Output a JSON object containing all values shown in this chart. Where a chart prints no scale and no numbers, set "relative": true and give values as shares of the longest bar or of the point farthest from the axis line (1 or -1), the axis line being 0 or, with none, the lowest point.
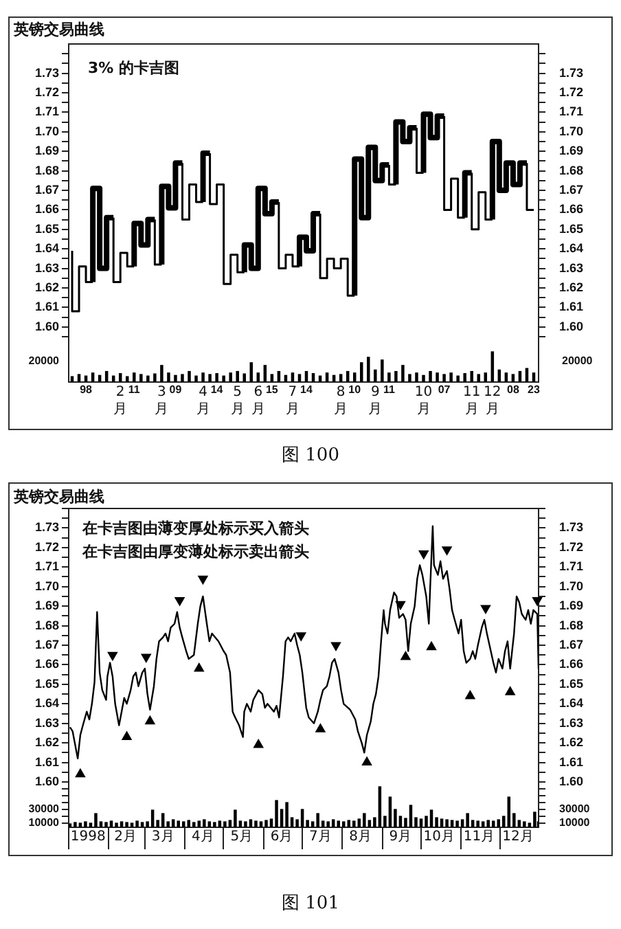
{
  "chart_data": [
    {
      "type": "step",
      "title": "英镑交易曲线",
      "annotations": [
        "3% 的卡吉图"
      ],
      "categories": [
        null,
        null,
        null,
        null,
        null,
        null,
        null,
        null,
        null,
        null,
        null,
        null,
        null,
        null,
        null,
        null,
        null,
        null,
        null,
        null,
        null,
        null,
        null,
        null,
        null,
        null,
        null,
        null,
        null,
        null,
        null,
        null,
        null,
        null,
        null,
        null,
        null,
        null,
        null,
        null,
        null,
        null,
        null,
        null,
        null,
        null,
        null,
        null,
        null,
        null,
        null,
        null,
        null,
        null,
        null,
        null,
        null,
        null,
        null,
        null,
        null,
        null,
        null,
        null,
        null,
        null,
        null,
        null
      ],
      "values": [
        1.639,
        1.608,
        1.631,
        1.623,
        1.671,
        1.63,
        1.656,
        1.623,
        1.638,
        1.631,
        1.653,
        1.642,
        1.655,
        1.632,
        1.672,
        1.661,
        1.684,
        1.655,
        1.673,
        1.664,
        1.689,
        1.663,
        1.673,
        1.622,
        1.637,
        1.628,
        1.642,
        1.63,
        1.671,
        1.658,
        1.664,
        1.63,
        1.637,
        1.631,
        1.646,
        1.639,
        1.658,
        1.625,
        1.635,
        1.63,
        1.635,
        1.616,
        1.686,
        1.656,
        1.692,
        1.675,
        1.683,
        1.673,
        1.705,
        1.695,
        1.702,
        1.679,
        1.709,
        1.697,
        1.708,
        1.66,
        1.676,
        1.656,
        1.679,
        1.65,
        1.669,
        1.655,
        1.695,
        1.67,
        1.684,
        1.673,
        1.684,
        1.66
      ],
      "color": "#000000",
      "ylim": [
        1.595,
        1.745
      ],
      "yticks": [
        {
          "value": 1.595,
          "label": null
        },
        {
          "value": 1.6,
          "label": "1.60"
        },
        {
          "value": 1.605,
          "label": null
        },
        1.61,
        {
          "value": 1.615,
          "label": null
        },
        1.62,
        {
          "value": 1.625,
          "label": null
        },
        1.63,
        {
          "value": 1.635,
          "label": null
        },
        1.64,
        {
          "value": 1.645,
          "label": null
        },
        1.65,
        {
          "value": 1.655,
          "label": null
        },
        1.66,
        {
          "value": 1.665,
          "label": null
        },
        1.67,
        {
          "value": 1.675,
          "label": null
        },
        1.68,
        {
          "value": 1.685,
          "label": null
        },
        1.69,
        {
          "value": 1.695,
          "label": null
        },
        {
          "value": 1.7,
          "label": "1.70"
        },
        {
          "value": 1.705,
          "label": null
        },
        1.71,
        {
          "value": 1.715,
          "label": null
        },
        1.72,
        {
          "value": 1.725,
          "label": null
        },
        1.73,
        {
          "value": 1.735,
          "label": null
        },
        {
          "value": 1.74,
          "label": null
        }
      ],
      "y2lim": [
        1.595,
        1.745
      ],
      "y2ticks": [
        {
          "value": 1.595,
          "label": null
        },
        {
          "value": 1.6,
          "label": "1.60"
        },
        {
          "value": 1.605,
          "label": null
        },
        1.61,
        {
          "value": 1.615,
          "label": null
        },
        1.62,
        {
          "value": 1.625,
          "label": null
        },
        1.63,
        {
          "value": 1.635,
          "label": null
        },
        1.64,
        {
          "value": 1.645,
          "label": null
        },
        1.65,
        {
          "value": 1.655,
          "label": null
        },
        1.66,
        {
          "value": 1.665,
          "label": null
        },
        1.67,
        {
          "value": 1.675,
          "label": null
        },
        1.68,
        {
          "value": 1.685,
          "label": null
        },
        1.69,
        {
          "value": 1.695,
          "label": null
        },
        {
          "value": 1.7,
          "label": "1.70"
        },
        {
          "value": 1.705,
          "label": null
        },
        1.71,
        {
          "value": 1.715,
          "label": null
        },
        1.72,
        {
          "value": 1.725,
          "label": null
        },
        1.73,
        {
          "value": 1.735,
          "label": null
        },
        {
          "value": 1.74,
          "label": null
        }
      ],
      "tick_labels": "y"
    },
    {
      "type": "bar",
      "relative": true,
      "annotations": [
        "20000",
        "20000",
        "图 100"
      ],
      "categories": [
        null,
        null,
        "98",
        null,
        null,
        null,
        null,
        "2月",
        null,
        "11",
        null,
        null,
        null,
        "3月",
        null,
        "09",
        null,
        null,
        null,
        "4月",
        null,
        "14",
        null,
        null,
        "5月",
        null,
        null,
        "6月",
        null,
        "15",
        null,
        null,
        "7月",
        null,
        "14",
        null,
        null,
        null,
        null,
        "8月",
        null,
        "10",
        null,
        null,
        "9月",
        null,
        "11",
        null,
        null,
        null,
        null,
        "10月",
        null,
        null,
        "07",
        null,
        null,
        null,
        "11月",
        null,
        null,
        "12月",
        null,
        null,
        "08",
        null,
        null,
        "23"
      ],
      "values": [
        0.18,
        0.25,
        0.2,
        0.3,
        0.22,
        0.35,
        0.2,
        0.28,
        0.18,
        0.3,
        0.25,
        0.2,
        0.27,
        0.55,
        0.3,
        0.22,
        0.25,
        0.35,
        0.2,
        0.3,
        0.25,
        0.28,
        0.2,
        0.3,
        0.35,
        0.27,
        0.64,
        0.3,
        0.55,
        0.25,
        0.35,
        0.22,
        0.3,
        0.25,
        0.35,
        0.28,
        0.2,
        0.3,
        0.22,
        0.25,
        0.35,
        0.3,
        0.64,
        0.82,
        0.4,
        0.73,
        0.3,
        0.35,
        0.55,
        0.25,
        0.3,
        0.22,
        0.35,
        0.3,
        0.25,
        0.3,
        0.2,
        0.28,
        0.35,
        0.25,
        0.3,
        1,
        0.4,
        0.3,
        0.25,
        0.35,
        0.45,
        0.3
      ],
      "color": "#000000"
    },
    {
      "type": "line",
      "title": "英镑交易曲线",
      "annotations": [
        "在卡吉图由薄变厚处标示买入箭头",
        "在卡吉图由厚变薄处标示卖出箭头"
      ],
      "xlim": [
        "1998-01-01",
        "1998-12-31"
      ],
      "ylim": [
        1.6,
        1.74
      ],
      "yticks": [
        {
          "value": 1.6,
          "label": "1.60"
        },
        {
          "value": 1.605,
          "label": null
        },
        1.61,
        {
          "value": 1.615,
          "label": null
        },
        1.62,
        {
          "value": 1.625,
          "label": null
        },
        1.63,
        {
          "value": 1.635,
          "label": null
        },
        1.64,
        {
          "value": 1.645,
          "label": null
        },
        1.65,
        {
          "value": 1.655,
          "label": null
        },
        1.66,
        {
          "value": 1.665,
          "label": null
        },
        1.67,
        {
          "value": 1.675,
          "label": null
        },
        1.68,
        {
          "value": 1.685,
          "label": null
        },
        1.69,
        {
          "value": 1.695,
          "label": null
        },
        {
          "value": 1.7,
          "label": "1.70"
        },
        {
          "value": 1.705,
          "label": null
        },
        1.71,
        {
          "value": 1.715,
          "label": null
        },
        1.72,
        {
          "value": 1.725,
          "label": null
        },
        1.73,
        {
          "value": 1.735,
          "label": null
        },
        {
          "value": 1.74,
          "label": null
        }
      ],
      "y2lim": [
        1.6,
        1.74
      ],
      "y2ticks": [
        {
          "value": 1.6,
          "label": "1.60"
        },
        {
          "value": 1.605,
          "label": null
        },
        1.61,
        {
          "value": 1.615,
          "label": null
        },
        1.62,
        {
          "value": 1.625,
          "label": null
        },
        1.63,
        {
          "value": 1.635,
          "label": null
        },
        1.64,
        {
          "value": 1.645,
          "label": null
        },
        1.65,
        {
          "value": 1.655,
          "label": null
        },
        1.66,
        {
          "value": 1.665,
          "label": null
        },
        1.67,
        {
          "value": 1.675,
          "label": null
        },
        1.68,
        {
          "value": 1.685,
          "label": null
        },
        1.69,
        {
          "value": 1.695,
          "label": null
        },
        {
          "value": 1.7,
          "label": "1.70"
        },
        {
          "value": 1.705,
          "label": null
        },
        1.71,
        {
          "value": 1.715,
          "label": null
        },
        1.72,
        {
          "value": 1.725,
          "label": null
        },
        1.73,
        {
          "value": 1.735,
          "label": null
        },
        {
          "value": 1.74,
          "label": null
        }
      ],
      "tick_labels": "y",
      "series": [
        {
          "color": "#000000",
          "x": [
            "1998-01-02",
            "1998-01-04",
            "1998-01-08",
            "1998-01-10",
            "1998-01-12",
            "1998-01-15",
            "1998-01-17",
            "1998-01-19",
            "1998-01-21",
            "1998-01-23",
            "1998-01-25",
            "1998-01-27",
            "1998-01-30",
            "1998-01-31",
            "1998-02-02",
            "1998-02-04",
            "1998-02-06",
            "1998-02-09",
            "1998-02-11",
            "1998-02-13",
            "1998-02-15",
            "1998-02-18",
            "1998-02-20",
            "1998-02-22",
            "1998-02-24",
            "1998-02-27",
            "1998-03-01",
            "1998-03-03",
            "1998-03-05",
            "1998-03-08",
            "1998-03-10",
            "1998-03-12",
            "1998-03-15",
            "1998-03-17",
            "1998-03-19",
            "1998-03-21",
            "1998-03-24",
            "1998-03-26",
            "1998-03-28",
            "1998-03-30",
            "1998-04-02",
            "1998-04-04",
            "1998-04-08",
            "1998-04-11",
            "1998-04-13",
            "1998-04-15",
            "1998-04-18",
            "1998-04-20",
            "1998-04-22",
            "1998-04-27",
            "1998-05-01",
            "1998-05-03",
            "1998-05-06",
            "1998-05-08",
            "1998-05-10",
            "1998-05-13",
            "1998-05-16",
            "1998-05-17",
            "1998-05-19",
            "1998-05-22",
            "1998-05-24",
            "1998-05-28",
            "1998-05-31",
            "1998-06-02",
            "1998-06-04",
            "1998-06-09",
            "1998-06-11",
            "1998-06-13",
            "1998-06-16",
            "1998-06-18",
            "1998-06-20",
            "1998-06-22",
            "1998-06-25",
            "1998-06-27",
            "1998-06-29",
            "1998-07-01",
            "1998-07-04",
            "1998-07-06",
            "1998-07-10",
            "1998-07-13",
            "1998-07-15",
            "1998-07-17",
            "1998-07-20",
            "1998-07-22",
            "1998-07-24",
            "1998-07-26",
            "1998-07-29",
            "1998-07-31",
            "1998-08-02",
            "1998-08-07",
            "1998-08-11",
            "1998-08-13",
            "1998-08-16",
            "1998-08-18",
            "1998-08-20",
            "1998-08-23",
            "1998-08-25",
            "1998-08-27",
            "1998-08-29",
            "1998-08-31",
            "1998-09-02",
            "1998-09-03",
            "1998-09-05",
            "1998-09-07",
            "1998-09-10",
            "1998-09-12",
            "1998-09-14",
            "1998-09-17",
            "1998-09-19",
            "1998-09-21",
            "1998-09-23",
            "1998-09-26",
            "1998-09-28",
            "1998-09-30",
            "1998-10-02",
            "1998-10-05",
            "1998-10-07",
            "1998-10-08",
            "1998-10-10",
            "1998-10-11",
            "1998-10-14",
            "1998-10-16",
            "1998-10-18",
            "1998-10-21",
            "1998-10-23",
            "1998-10-25",
            "1998-10-27",
            "1998-10-30",
            "1998-11-01",
            "1998-11-03",
            "1998-11-05",
            "1998-11-08",
            "1998-11-10",
            "1998-11-12",
            "1998-11-14",
            "1998-11-17",
            "1998-11-19",
            "1998-11-21",
            "1998-11-24",
            "1998-11-26",
            "1998-11-28",
            "1998-11-30",
            "1998-12-03",
            "1998-12-05",
            "1998-12-07",
            "1998-12-09",
            "1998-12-12",
            "1998-12-14",
            "1998-12-16",
            "1998-12-18",
            "1998-12-21",
            "1998-12-23",
            "1998-12-25",
            "1998-12-27",
            "1998-12-30",
            "1998-12-31"
          ],
          "values": [
            1.628,
            1.626,
            1.612,
            1.624,
            1.629,
            1.636,
            1.632,
            1.64,
            1.651,
            1.687,
            1.656,
            1.647,
            1.642,
            1.654,
            1.661,
            1.654,
            1.64,
            1.629,
            1.636,
            1.643,
            1.64,
            1.647,
            1.654,
            1.656,
            1.649,
            1.656,
            1.658,
            1.645,
            1.637,
            1.649,
            1.663,
            1.672,
            1.674,
            1.676,
            1.672,
            1.679,
            1.681,
            1.687,
            1.679,
            1.674,
            1.667,
            1.663,
            1.665,
            1.681,
            1.69,
            1.695,
            1.681,
            1.672,
            1.676,
            1.672,
            1.667,
            1.665,
            1.656,
            1.636,
            1.633,
            1.629,
            1.623,
            1.636,
            1.64,
            1.636,
            1.642,
            1.647,
            1.645,
            1.638,
            1.64,
            1.636,
            1.639,
            1.633,
            1.654,
            1.672,
            1.674,
            1.672,
            1.676,
            1.67,
            1.665,
            1.656,
            1.638,
            1.633,
            1.63,
            1.636,
            1.642,
            1.647,
            1.649,
            1.654,
            1.661,
            1.663,
            1.656,
            1.647,
            1.64,
            1.637,
            1.632,
            1.626,
            1.62,
            1.615,
            1.624,
            1.631,
            1.64,
            1.645,
            1.654,
            1.672,
            1.688,
            1.681,
            1.676,
            1.688,
            1.697,
            1.695,
            1.684,
            1.686,
            1.683,
            1.667,
            1.681,
            1.69,
            1.704,
            1.711,
            1.706,
            1.695,
            1.681,
            1.699,
            1.731,
            1.711,
            1.706,
            1.713,
            1.704,
            1.708,
            1.699,
            1.688,
            1.683,
            1.676,
            1.683,
            1.667,
            1.661,
            1.663,
            1.667,
            1.663,
            1.67,
            1.679,
            1.683,
            1.676,
            1.667,
            1.661,
            1.656,
            1.663,
            1.658,
            1.667,
            1.672,
            1.658,
            1.676,
            1.695,
            1.692,
            1.686,
            1.683,
            1.688,
            1.681,
            1.688,
            1.686,
            1.658
          ]
        },
        {
          "type": "scatter",
          "marker": "triangle",
          "color": "#000000",
          "x": [
            "1998-01-10",
            "1998-02-15",
            "1998-03-05",
            "1998-04-12",
            "1998-05-28",
            "1998-07-15",
            "1998-08-20",
            "1998-09-19",
            "1998-10-09",
            "1998-11-08",
            "1998-12-09"
          ],
          "values": [
            1.604,
            1.623,
            1.631,
            1.658,
            1.619,
            1.627,
            1.61,
            1.664,
            1.669,
            1.644,
            1.646
          ]
        },
        {
          "type": "scatter",
          "marker": "triangle",
          "color": "#000000",
          "x": [
            "1998-02-04",
            "1998-03-02",
            "1998-03-28",
            "1998-04-15",
            "1998-06-30",
            "1998-07-27",
            "1998-09-15",
            "1998-10-03",
            "1998-10-21",
            "1998-11-20",
            "1998-12-30"
          ],
          "values": [
            1.665,
            1.664,
            1.693,
            1.704,
            1.675,
            1.67,
            1.691,
            1.717,
            1.719,
            1.689,
            1.693
          ]
        }
      ]
    },
    {
      "type": "bar",
      "annotations": [
        "图 101"
      ],
      "color": "#000000",
      "xlim": [
        "1998-01-01",
        "1998-12-31"
      ],
      "xticks": [
        {
          "value": "1998-01-01",
          "label": null
        },
        {
          "value": "1998-01-16",
          "label": "1998"
        },
        {
          "value": "1998-02-01",
          "label": null
        },
        {
          "value": "1998-02-14",
          "label": "2月"
        },
        {
          "value": "1998-03-01",
          "label": null
        },
        {
          "value": "1998-03-15",
          "label": "3月"
        },
        {
          "value": "1998-04-01",
          "label": null
        },
        {
          "value": "1998-04-15",
          "label": "4月"
        },
        {
          "value": "1998-05-01",
          "label": null
        },
        {
          "value": "1998-05-15",
          "label": "5月"
        },
        {
          "value": "1998-06-01",
          "label": null
        },
        {
          "value": "1998-06-15",
          "label": "6月"
        },
        {
          "value": "1998-07-01",
          "label": null
        },
        {
          "value": "1998-07-15",
          "label": "7月"
        },
        {
          "value": "1998-08-01",
          "label": null
        },
        {
          "value": "1998-08-15",
          "label": "8月"
        },
        {
          "value": "1998-09-01",
          "label": null
        },
        {
          "value": "1998-09-15",
          "label": "9月"
        },
        {
          "value": "1998-10-01",
          "label": null
        },
        {
          "value": "1998-10-15",
          "label": "10月"
        },
        {
          "value": "1998-11-01",
          "label": null
        },
        {
          "value": "1998-11-15",
          "label": "11月"
        },
        {
          "value": "1998-12-01",
          "label": null
        },
        {
          "value": "1998-12-15",
          "label": "12月"
        }
      ],
      "ylim": [
        4000,
        70000
      ],
      "yticks": [
        10000,
        {
          "value": 20000,
          "label": null
        },
        30000,
        {
          "value": 40000,
          "label": null
        },
        {
          "value": 50000,
          "label": null
        },
        {
          "value": 60000,
          "label": null
        }
      ],
      "y2lim": [
        4000,
        70000
      ],
      "y2ticks": [
        10000,
        {
          "value": 20000,
          "label": null
        },
        30000,
        {
          "value": 40000,
          "label": null
        },
        {
          "value": 50000,
          "label": null
        },
        {
          "value": 60000,
          "label": null
        }
      ],
      "x": [
        "1998-01-02",
        "1998-01-06",
        "1998-01-10",
        "1998-01-14",
        "1998-01-18",
        "1998-01-22",
        "1998-01-26",
        "1998-01-30",
        "1998-02-03",
        "1998-02-07",
        "1998-02-11",
        "1998-02-15",
        "1998-02-19",
        "1998-02-23",
        "1998-02-27",
        "1998-03-03",
        "1998-03-07",
        "1998-03-11",
        "1998-03-15",
        "1998-03-19",
        "1998-03-23",
        "1998-03-27",
        "1998-03-31",
        "1998-04-04",
        "1998-04-08",
        "1998-04-12",
        "1998-04-16",
        "1998-04-20",
        "1998-04-24",
        "1998-04-28",
        "1998-05-02",
        "1998-05-06",
        "1998-05-10",
        "1998-05-14",
        "1998-05-18",
        "1998-05-22",
        "1998-05-26",
        "1998-05-30",
        "1998-06-03",
        "1998-06-07",
        "1998-06-11",
        "1998-06-15",
        "1998-06-19",
        "1998-06-23",
        "1998-06-27",
        "1998-07-01",
        "1998-07-05",
        "1998-07-09",
        "1998-07-13",
        "1998-07-17",
        "1998-07-21",
        "1998-07-25",
        "1998-07-29",
        "1998-08-02",
        "1998-08-06",
        "1998-08-10",
        "1998-08-14",
        "1998-08-18",
        "1998-08-22",
        "1998-08-26",
        "1998-08-30",
        "1998-09-03",
        "1998-09-07",
        "1998-09-11",
        "1998-09-15",
        "1998-09-19",
        "1998-09-23",
        "1998-09-27",
        "1998-10-01",
        "1998-10-05",
        "1998-10-09",
        "1998-10-13",
        "1998-10-17",
        "1998-10-21",
        "1998-10-25",
        "1998-10-29",
        "1998-11-02",
        "1998-11-06",
        "1998-11-10",
        "1998-11-14",
        "1998-11-18",
        "1998-11-22",
        "1998-11-26",
        "1998-11-30",
        "1998-12-04",
        "1998-12-08",
        "1998-12-12",
        "1998-12-16",
        "1998-12-20",
        "1998-12-24",
        "1998-12-28",
        "1998-12-31"
      ],
      "values": [
        9000,
        11000,
        10000,
        12000,
        10000,
        24000,
        12000,
        11000,
        13000,
        10000,
        12000,
        11000,
        10000,
        13000,
        11000,
        12000,
        29000,
        14000,
        24000,
        12000,
        15000,
        13000,
        12000,
        14000,
        11000,
        13000,
        15000,
        12000,
        11000,
        13000,
        12000,
        14000,
        29000,
        13000,
        12000,
        15000,
        13000,
        12000,
        14000,
        16000,
        43000,
        30000,
        40000,
        18000,
        15000,
        30000,
        14000,
        12000,
        24000,
        13000,
        12000,
        15000,
        13000,
        12000,
        14000,
        13000,
        16000,
        24000,
        14000,
        18000,
        63000,
        20000,
        48000,
        30000,
        20000,
        17000,
        36000,
        18000,
        16000,
        20000,
        29000,
        18000,
        16000,
        15000,
        14000,
        13000,
        15000,
        24000,
        14000,
        13000,
        12000,
        14000,
        13000,
        15000,
        20000,
        48000,
        24000,
        14000,
        12000,
        10000,
        26000,
        12000
      ]
    }
  ]
}
